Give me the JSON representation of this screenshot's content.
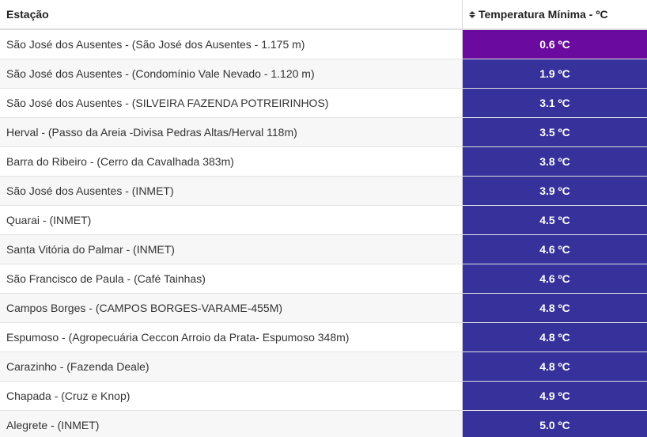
{
  "header": {
    "station_label": "Estação",
    "temp_label": "Temperatura Mínima - ºC",
    "sort_icon": "sort-icon"
  },
  "colors": {
    "coldest": "#6a0a9e",
    "cold": "#36319b"
  },
  "rows": [
    {
      "station": "São José dos Ausentes - (São José dos Ausentes - 1.175 m)",
      "temp": "0.6 ºC",
      "level": "coldest"
    },
    {
      "station": "São José dos Ausentes - (Condomínio Vale Nevado - 1.120 m)",
      "temp": "1.9 ºC",
      "level": "cold"
    },
    {
      "station": "São José dos Ausentes - (SILVEIRA FAZENDA POTREIRINHOS)",
      "temp": "3.1 ºC",
      "level": "cold"
    },
    {
      "station": "Herval - (Passo da Areia -Divisa Pedras Altas/Herval 118m)",
      "temp": "3.5 ºC",
      "level": "cold"
    },
    {
      "station": "Barra do Ribeiro - (Cerro da Cavalhada 383m)",
      "temp": "3.8 ºC",
      "level": "cold"
    },
    {
      "station": "São José dos Ausentes - (INMET)",
      "temp": "3.9 ºC",
      "level": "cold"
    },
    {
      "station": "Quarai - (INMET)",
      "temp": "4.5 ºC",
      "level": "cold"
    },
    {
      "station": "Santa Vitória do Palmar - (INMET)",
      "temp": "4.6 ºC",
      "level": "cold"
    },
    {
      "station": "São Francisco de Paula - (Café Tainhas)",
      "temp": "4.6 ºC",
      "level": "cold"
    },
    {
      "station": "Campos Borges - (CAMPOS BORGES-VARAME-455M)",
      "temp": "4.8 ºC",
      "level": "cold"
    },
    {
      "station": "Espumoso - (Agropecuária Ceccon Arroio da Prata- Espumoso 348m)",
      "temp": "4.8 ºC",
      "level": "cold"
    },
    {
      "station": "Carazinho - (Fazenda Deale)",
      "temp": "4.8 ºC",
      "level": "cold"
    },
    {
      "station": "Chapada - (Cruz e Knop)",
      "temp": "4.9 ºC",
      "level": "cold"
    },
    {
      "station": "Alegrete - (INMET)",
      "temp": "5.0 ºC",
      "level": "cold"
    }
  ]
}
